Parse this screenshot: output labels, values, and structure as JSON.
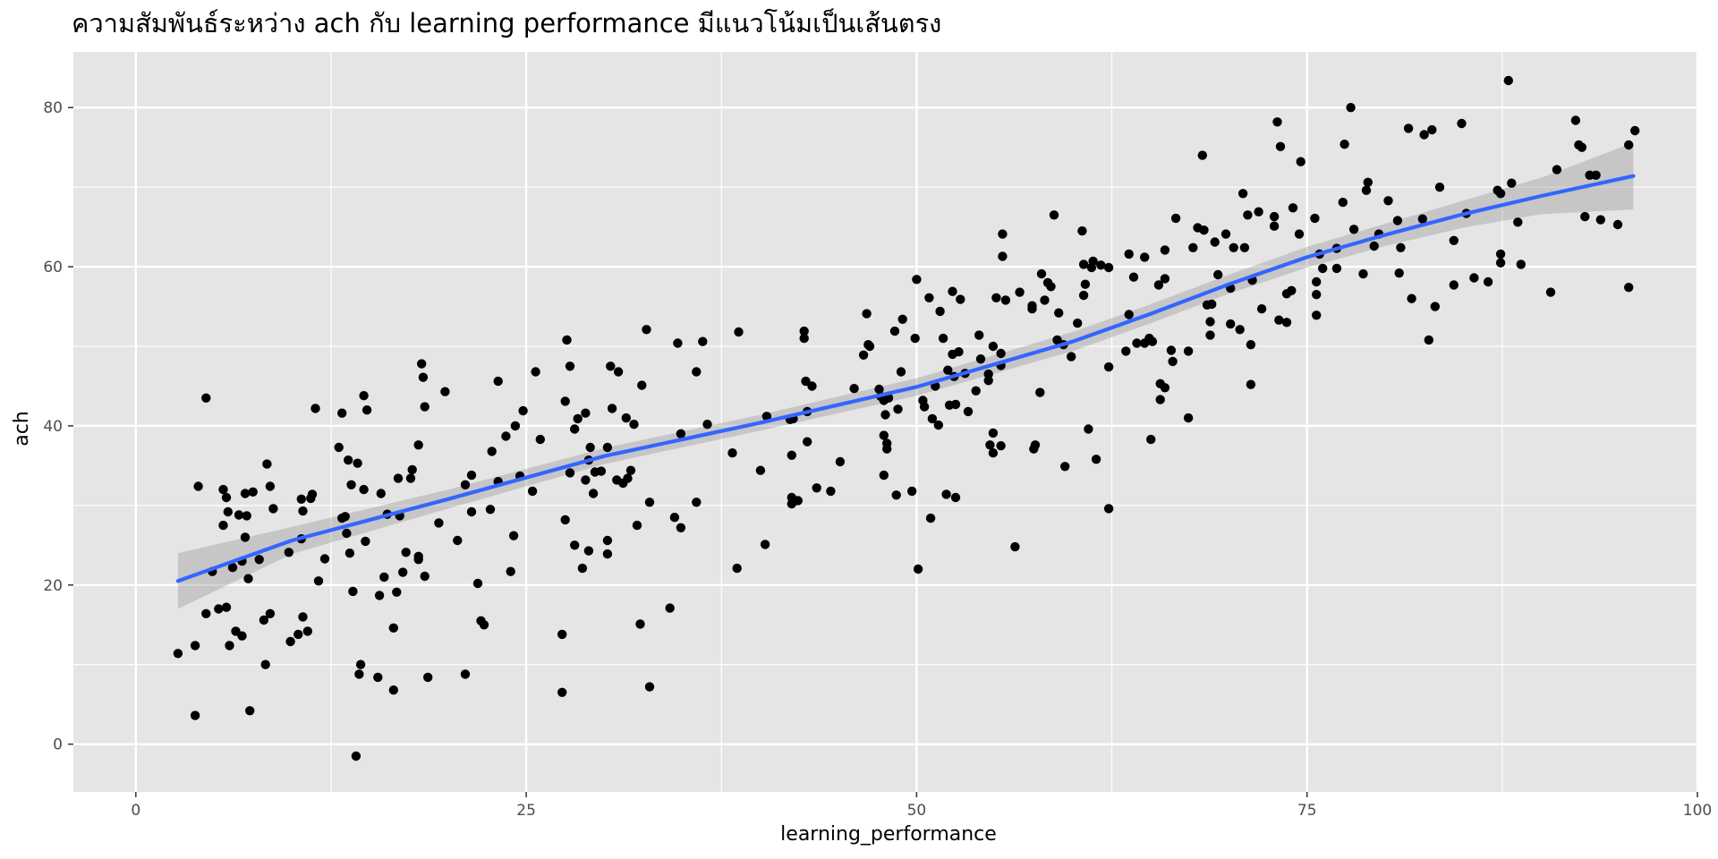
{
  "chart_data": {
    "type": "scatter",
    "title": "",
    "subtitle": "ความสัมพันธ์ระหว่าง ach กับ learning performance มีแนวโน้มเป็นเส้นตรง",
    "xlabel": "learning_performance",
    "ylabel": "ach",
    "xlim": [
      -4,
      100
    ],
    "ylim": [
      -6,
      87
    ],
    "x_ticks": [
      0,
      25,
      50,
      75,
      100
    ],
    "y_ticks": [
      0,
      20,
      40,
      60,
      80
    ],
    "grid": true,
    "legend": "none",
    "colors": {
      "panel": "#e5e5e5",
      "gridline": "#ffffff",
      "point": "#000000",
      "smooth_line": "#3366ff",
      "ribbon": "#999999"
    },
    "smooth": {
      "method": "loess",
      "x": [
        2.7,
        10,
        20,
        30,
        40,
        50,
        60,
        65,
        70,
        75,
        80,
        85,
        90,
        95.9
      ],
      "y": [
        20.5,
        25.6,
        30.8,
        36.2,
        40.4,
        44.9,
        50.6,
        54.1,
        57.8,
        61.2,
        64.0,
        66.6,
        68.9,
        71.4
      ],
      "lower": [
        17.0,
        23.9,
        29.6,
        35.2,
        39.4,
        43.8,
        49.4,
        52.9,
        56.6,
        59.9,
        62.6,
        64.9,
        66.6,
        67.2
      ],
      "upper": [
        24.0,
        27.3,
        32.0,
        37.2,
        41.4,
        46.0,
        51.8,
        55.3,
        59.0,
        62.5,
        65.4,
        68.3,
        71.2,
        75.6
      ]
    },
    "points": [
      [
        2.7,
        11.4
      ],
      [
        3.8,
        3.6
      ],
      [
        3.8,
        12.4
      ],
      [
        4.0,
        32.4
      ],
      [
        4.5,
        43.5
      ],
      [
        4.5,
        16.4
      ],
      [
        4.9,
        21.7
      ],
      [
        5.3,
        17.0
      ],
      [
        5.6,
        27.5
      ],
      [
        5.6,
        32.0
      ],
      [
        5.8,
        17.2
      ],
      [
        5.8,
        31.0
      ],
      [
        5.9,
        29.2
      ],
      [
        6.0,
        12.4
      ],
      [
        6.2,
        22.2
      ],
      [
        6.4,
        14.2
      ],
      [
        6.6,
        28.8
      ],
      [
        6.8,
        13.6
      ],
      [
        6.8,
        23.0
      ],
      [
        7.0,
        26.0
      ],
      [
        7.0,
        31.5
      ],
      [
        7.1,
        28.7
      ],
      [
        7.2,
        20.8
      ],
      [
        7.3,
        4.2
      ],
      [
        7.5,
        31.7
      ],
      [
        7.9,
        23.2
      ],
      [
        8.2,
        15.6
      ],
      [
        8.3,
        10.0
      ],
      [
        8.4,
        35.2
      ],
      [
        8.6,
        16.4
      ],
      [
        8.6,
        32.4
      ],
      [
        8.8,
        29.6
      ],
      [
        9.8,
        24.1
      ],
      [
        9.9,
        12.9
      ],
      [
        10.4,
        13.8
      ],
      [
        10.6,
        30.8
      ],
      [
        10.6,
        25.8
      ],
      [
        10.7,
        16.0
      ],
      [
        10.7,
        29.3
      ],
      [
        11.0,
        14.2
      ],
      [
        11.2,
        30.9
      ],
      [
        11.3,
        31.4
      ],
      [
        11.5,
        42.2
      ],
      [
        11.7,
        20.5
      ],
      [
        12.1,
        23.3
      ],
      [
        13.0,
        37.3
      ],
      [
        13.2,
        28.4
      ],
      [
        13.2,
        41.6
      ],
      [
        13.4,
        28.6
      ],
      [
        13.5,
        26.5
      ],
      [
        13.6,
        35.7
      ],
      [
        13.7,
        24.0
      ],
      [
        13.8,
        32.6
      ],
      [
        13.9,
        19.2
      ],
      [
        14.1,
        -1.5
      ],
      [
        14.2,
        35.3
      ],
      [
        14.3,
        8.8
      ],
      [
        14.4,
        10.0
      ],
      [
        14.6,
        43.8
      ],
      [
        14.6,
        32.0
      ],
      [
        14.7,
        25.5
      ],
      [
        14.8,
        42.0
      ],
      [
        15.5,
        8.4
      ],
      [
        15.6,
        18.7
      ],
      [
        15.7,
        31.5
      ],
      [
        15.9,
        21.0
      ],
      [
        16.1,
        28.9
      ],
      [
        16.5,
        6.8
      ],
      [
        16.5,
        14.6
      ],
      [
        16.7,
        19.1
      ],
      [
        16.8,
        33.4
      ],
      [
        16.9,
        28.7
      ],
      [
        17.1,
        21.6
      ],
      [
        17.3,
        24.1
      ],
      [
        17.6,
        33.4
      ],
      [
        17.7,
        34.5
      ],
      [
        18.1,
        37.6
      ],
      [
        18.1,
        23.6
      ],
      [
        18.1,
        23.2
      ],
      [
        18.3,
        47.8
      ],
      [
        18.4,
        46.1
      ],
      [
        18.5,
        42.4
      ],
      [
        18.5,
        21.1
      ],
      [
        18.7,
        8.4
      ],
      [
        19.4,
        27.8
      ],
      [
        19.8,
        44.3
      ],
      [
        20.6,
        25.6
      ],
      [
        21.1,
        32.6
      ],
      [
        21.1,
        8.8
      ],
      [
        21.5,
        29.2
      ],
      [
        21.5,
        33.8
      ],
      [
        21.9,
        20.2
      ],
      [
        22.1,
        15.5
      ],
      [
        22.3,
        15.0
      ],
      [
        22.7,
        29.5
      ],
      [
        22.8,
        36.8
      ],
      [
        23.2,
        33.0
      ],
      [
        23.2,
        45.6
      ],
      [
        23.7,
        38.7
      ],
      [
        24.0,
        21.7
      ],
      [
        24.2,
        26.2
      ],
      [
        24.3,
        40.0
      ],
      [
        24.6,
        33.7
      ],
      [
        24.8,
        41.9
      ],
      [
        25.4,
        31.8
      ],
      [
        25.6,
        46.8
      ],
      [
        25.9,
        38.3
      ],
      [
        27.3,
        13.8
      ],
      [
        27.3,
        6.5
      ],
      [
        27.5,
        28.2
      ],
      [
        27.5,
        43.1
      ],
      [
        27.6,
        50.8
      ],
      [
        27.8,
        47.5
      ],
      [
        27.8,
        34.1
      ],
      [
        28.1,
        25.0
      ],
      [
        28.1,
        39.6
      ],
      [
        28.3,
        40.9
      ],
      [
        28.6,
        22.1
      ],
      [
        28.8,
        33.2
      ],
      [
        28.8,
        41.6
      ],
      [
        29.0,
        24.3
      ],
      [
        29.0,
        35.7
      ],
      [
        29.1,
        37.3
      ],
      [
        29.3,
        31.5
      ],
      [
        29.4,
        34.2
      ],
      [
        29.8,
        34.3
      ],
      [
        30.2,
        25.6
      ],
      [
        30.2,
        23.9
      ],
      [
        30.2,
        37.3
      ],
      [
        30.4,
        47.5
      ],
      [
        30.5,
        42.2
      ],
      [
        30.8,
        33.2
      ],
      [
        30.9,
        46.8
      ],
      [
        31.2,
        32.8
      ],
      [
        31.4,
        41.0
      ],
      [
        31.5,
        33.4
      ],
      [
        31.7,
        34.4
      ],
      [
        31.9,
        40.2
      ],
      [
        32.1,
        27.5
      ],
      [
        32.3,
        15.1
      ],
      [
        32.4,
        45.1
      ],
      [
        32.7,
        52.1
      ],
      [
        32.9,
        7.2
      ],
      [
        32.9,
        30.4
      ],
      [
        34.2,
        17.1
      ],
      [
        34.5,
        28.5
      ],
      [
        34.7,
        50.4
      ],
      [
        34.9,
        39.0
      ],
      [
        34.9,
        27.2
      ],
      [
        35.9,
        46.8
      ],
      [
        35.9,
        30.4
      ],
      [
        36.3,
        50.6
      ],
      [
        36.6,
        40.2
      ],
      [
        38.2,
        36.6
      ],
      [
        38.5,
        22.1
      ],
      [
        38.6,
        51.8
      ],
      [
        40.0,
        34.4
      ],
      [
        40.3,
        25.1
      ],
      [
        40.4,
        41.2
      ],
      [
        41.9,
        40.8
      ],
      [
        42.0,
        36.3
      ],
      [
        42.0,
        31.0
      ],
      [
        42.0,
        30.2
      ],
      [
        42.1,
        40.9
      ],
      [
        42.4,
        30.6
      ],
      [
        42.8,
        51.0
      ],
      [
        42.8,
        51.9
      ],
      [
        42.9,
        45.6
      ],
      [
        43.0,
        38.0
      ],
      [
        43.0,
        41.8
      ],
      [
        43.3,
        45.0
      ],
      [
        43.6,
        32.2
      ],
      [
        44.5,
        31.8
      ],
      [
        45.1,
        35.5
      ],
      [
        46.0,
        44.7
      ],
      [
        46.6,
        48.9
      ],
      [
        46.8,
        54.1
      ],
      [
        46.9,
        50.2
      ],
      [
        47.0,
        50.0
      ],
      [
        47.6,
        44.6
      ],
      [
        47.7,
        43.7
      ],
      [
        47.9,
        43.2
      ],
      [
        47.9,
        33.8
      ],
      [
        47.9,
        38.8
      ],
      [
        48.0,
        41.4
      ],
      [
        48.1,
        37.8
      ],
      [
        48.1,
        37.1
      ],
      [
        48.2,
        43.5
      ],
      [
        48.6,
        51.9
      ],
      [
        48.7,
        31.3
      ],
      [
        48.8,
        42.1
      ],
      [
        49.0,
        46.8
      ],
      [
        49.1,
        53.4
      ],
      [
        49.7,
        31.8
      ],
      [
        49.9,
        51.0
      ],
      [
        50.0,
        58.4
      ],
      [
        50.1,
        22.0
      ],
      [
        50.4,
        43.2
      ],
      [
        50.5,
        42.4
      ],
      [
        50.8,
        56.1
      ],
      [
        50.9,
        28.4
      ],
      [
        51.0,
        40.9
      ],
      [
        51.2,
        45.0
      ],
      [
        51.4,
        40.1
      ],
      [
        51.5,
        54.4
      ],
      [
        51.7,
        51.0
      ],
      [
        51.9,
        31.4
      ],
      [
        52.0,
        47.0
      ],
      [
        52.1,
        42.6
      ],
      [
        52.3,
        56.9
      ],
      [
        52.3,
        49.0
      ],
      [
        52.4,
        46.2
      ],
      [
        52.5,
        42.7
      ],
      [
        52.5,
        31.0
      ],
      [
        52.7,
        49.3
      ],
      [
        52.8,
        55.9
      ],
      [
        53.1,
        46.6
      ],
      [
        53.3,
        41.8
      ],
      [
        53.8,
        44.4
      ],
      [
        54.0,
        51.4
      ],
      [
        54.1,
        48.4
      ],
      [
        54.6,
        45.7
      ],
      [
        54.6,
        46.5
      ],
      [
        54.7,
        37.6
      ],
      [
        54.9,
        50.0
      ],
      [
        54.9,
        36.6
      ],
      [
        54.9,
        39.1
      ],
      [
        55.1,
        56.1
      ],
      [
        55.4,
        49.1
      ],
      [
        55.4,
        47.6
      ],
      [
        55.4,
        37.5
      ],
      [
        55.5,
        64.1
      ],
      [
        55.5,
        61.3
      ],
      [
        55.7,
        55.8
      ],
      [
        56.3,
        24.8
      ],
      [
        56.6,
        56.8
      ],
      [
        57.4,
        55.1
      ],
      [
        57.4,
        54.7
      ],
      [
        57.5,
        37.1
      ],
      [
        57.6,
        37.6
      ],
      [
        57.9,
        44.2
      ],
      [
        58.0,
        59.1
      ],
      [
        58.2,
        55.8
      ],
      [
        58.4,
        58.0
      ],
      [
        58.6,
        57.5
      ],
      [
        58.8,
        66.5
      ],
      [
        59.0,
        50.8
      ],
      [
        59.1,
        54.2
      ],
      [
        59.4,
        50.2
      ],
      [
        59.5,
        34.9
      ],
      [
        59.9,
        48.7
      ],
      [
        60.3,
        52.9
      ],
      [
        60.6,
        64.5
      ],
      [
        60.7,
        60.3
      ],
      [
        60.7,
        56.4
      ],
      [
        60.8,
        57.8
      ],
      [
        61.0,
        39.6
      ],
      [
        61.2,
        59.9
      ],
      [
        61.3,
        60.7
      ],
      [
        61.5,
        35.8
      ],
      [
        61.8,
        60.2
      ],
      [
        62.3,
        59.9
      ],
      [
        62.3,
        29.6
      ],
      [
        62.3,
        47.4
      ],
      [
        63.4,
        49.4
      ],
      [
        63.6,
        61.6
      ],
      [
        63.6,
        54.0
      ],
      [
        63.9,
        58.7
      ],
      [
        64.1,
        50.4
      ],
      [
        64.6,
        50.4
      ],
      [
        64.6,
        61.2
      ],
      [
        64.9,
        51.0
      ],
      [
        65.0,
        38.3
      ],
      [
        65.1,
        50.6
      ],
      [
        65.5,
        57.7
      ],
      [
        65.6,
        43.3
      ],
      [
        65.6,
        45.3
      ],
      [
        65.9,
        58.5
      ],
      [
        65.9,
        62.1
      ],
      [
        65.9,
        44.8
      ],
      [
        66.3,
        49.5
      ],
      [
        66.4,
        48.1
      ],
      [
        66.6,
        66.1
      ],
      [
        67.4,
        49.4
      ],
      [
        67.4,
        41.0
      ],
      [
        67.7,
        62.4
      ],
      [
        68.0,
        64.9
      ],
      [
        68.3,
        74.0
      ],
      [
        68.4,
        64.6
      ],
      [
        68.6,
        55.2
      ],
      [
        68.8,
        51.4
      ],
      [
        68.8,
        53.1
      ],
      [
        68.9,
        55.3
      ],
      [
        69.1,
        63.1
      ],
      [
        69.3,
        59.0
      ],
      [
        69.8,
        64.1
      ],
      [
        70.1,
        52.8
      ],
      [
        70.1,
        57.3
      ],
      [
        70.3,
        62.4
      ],
      [
        70.7,
        52.1
      ],
      [
        70.9,
        69.2
      ],
      [
        71.0,
        62.4
      ],
      [
        71.2,
        66.5
      ],
      [
        71.4,
        50.2
      ],
      [
        71.4,
        45.2
      ],
      [
        71.5,
        58.3
      ],
      [
        71.9,
        66.9
      ],
      [
        72.1,
        54.7
      ],
      [
        72.9,
        65.1
      ],
      [
        72.9,
        66.3
      ],
      [
        73.1,
        78.2
      ],
      [
        73.2,
        53.3
      ],
      [
        73.3,
        75.1
      ],
      [
        73.7,
        53.0
      ],
      [
        73.7,
        56.6
      ],
      [
        74.0,
        57.0
      ],
      [
        74.1,
        67.4
      ],
      [
        74.5,
        64.1
      ],
      [
        74.6,
        73.2
      ],
      [
        75.5,
        66.1
      ],
      [
        75.6,
        58.1
      ],
      [
        75.6,
        56.5
      ],
      [
        75.6,
        53.9
      ],
      [
        75.8,
        61.6
      ],
      [
        76.0,
        59.8
      ],
      [
        76.9,
        62.3
      ],
      [
        76.9,
        59.8
      ],
      [
        77.3,
        68.1
      ],
      [
        77.4,
        75.4
      ],
      [
        77.8,
        80.0
      ],
      [
        78.0,
        64.7
      ],
      [
        78.6,
        59.1
      ],
      [
        78.8,
        69.6
      ],
      [
        78.9,
        70.6
      ],
      [
        79.3,
        62.6
      ],
      [
        79.6,
        64.1
      ],
      [
        80.2,
        68.3
      ],
      [
        80.8,
        65.8
      ],
      [
        80.9,
        59.2
      ],
      [
        81.0,
        62.4
      ],
      [
        81.5,
        77.4
      ],
      [
        81.7,
        56.0
      ],
      [
        82.4,
        66.0
      ],
      [
        82.5,
        76.6
      ],
      [
        82.8,
        50.8
      ],
      [
        83.0,
        77.2
      ],
      [
        83.2,
        55.0
      ],
      [
        83.5,
        70.0
      ],
      [
        84.4,
        63.3
      ],
      [
        84.4,
        57.7
      ],
      [
        84.9,
        78.0
      ],
      [
        85.2,
        66.7
      ],
      [
        85.7,
        58.6
      ],
      [
        86.6,
        58.1
      ],
      [
        87.2,
        69.6
      ],
      [
        87.4,
        69.2
      ],
      [
        87.4,
        60.5
      ],
      [
        87.4,
        61.6
      ],
      [
        87.9,
        83.4
      ],
      [
        88.1,
        70.5
      ],
      [
        88.5,
        65.6
      ],
      [
        88.7,
        60.3
      ],
      [
        90.6,
        56.8
      ],
      [
        91.0,
        72.2
      ],
      [
        92.2,
        78.4
      ],
      [
        92.4,
        75.3
      ],
      [
        92.6,
        75.0
      ],
      [
        92.8,
        66.3
      ],
      [
        93.1,
        71.5
      ],
      [
        93.5,
        71.5
      ],
      [
        93.8,
        65.9
      ],
      [
        94.9,
        65.3
      ],
      [
        95.6,
        75.3
      ],
      [
        95.6,
        57.4
      ],
      [
        96.0,
        77.1
      ]
    ]
  }
}
